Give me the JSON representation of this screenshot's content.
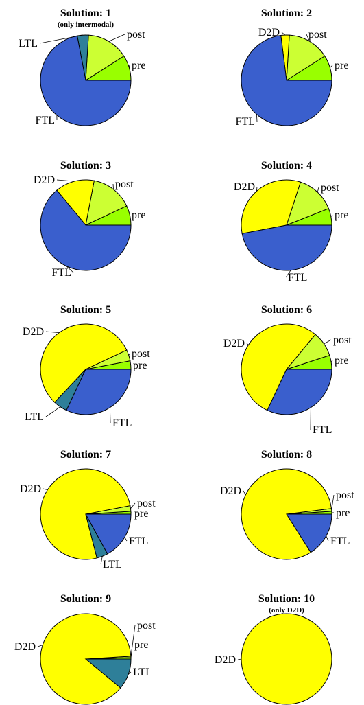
{
  "colors": {
    "pre": "#99ff00",
    "post": "#ccff33",
    "D2D": "#ffff00",
    "LTL": "#2e7f99",
    "FTL": "#3a5fcd"
  },
  "chart_data": [
    {
      "type": "pie",
      "title": "Solution: 1",
      "subtitle": "(only intermodal)",
      "slices": [
        {
          "name": "pre",
          "value": 9,
          "label": "pre"
        },
        {
          "name": "post",
          "value": 15,
          "label": "post"
        },
        {
          "name": "LTL",
          "value": 4,
          "label": "LTL"
        },
        {
          "name": "FTL",
          "value": 72,
          "label": "FTL"
        }
      ]
    },
    {
      "type": "pie",
      "title": "Solution: 2",
      "slices": [
        {
          "name": "pre",
          "value": 9,
          "label": "pre"
        },
        {
          "name": "post",
          "value": 15,
          "label": "post"
        },
        {
          "name": "D2D",
          "value": 3,
          "label": "D2D"
        },
        {
          "name": "FTL",
          "value": 73,
          "label": "FTL"
        }
      ]
    },
    {
      "type": "pie",
      "title": "Solution: 3",
      "slices": [
        {
          "name": "pre",
          "value": 7,
          "label": "pre"
        },
        {
          "name": "post",
          "value": 15,
          "label": "post"
        },
        {
          "name": "D2D",
          "value": 14,
          "label": "D2D"
        },
        {
          "name": "FTL",
          "value": 64,
          "label": "FTL"
        }
      ]
    },
    {
      "type": "pie",
      "title": "Solution: 4",
      "slices": [
        {
          "name": "pre",
          "value": 6,
          "label": "pre"
        },
        {
          "name": "post",
          "value": 14,
          "label": "post"
        },
        {
          "name": "D2D",
          "value": 33,
          "label": "D2D"
        },
        {
          "name": "FTL",
          "value": 47,
          "label": "FTL"
        }
      ]
    },
    {
      "type": "pie",
      "title": "Solution: 5",
      "slices": [
        {
          "name": "pre",
          "value": 3,
          "label": "pre"
        },
        {
          "name": "post",
          "value": 4,
          "label": "post"
        },
        {
          "name": "D2D",
          "value": 56,
          "label": "D2D"
        },
        {
          "name": "LTL",
          "value": 5,
          "label": "LTL"
        },
        {
          "name": "FTL",
          "value": 32,
          "label": "FTL"
        }
      ]
    },
    {
      "type": "pie",
      "title": "Solution: 6",
      "slices": [
        {
          "name": "pre",
          "value": 5,
          "label": "pre"
        },
        {
          "name": "post",
          "value": 9,
          "label": "post"
        },
        {
          "name": "D2D",
          "value": 54,
          "label": "D2D"
        },
        {
          "name": "FTL",
          "value": 32,
          "label": "FTL"
        }
      ]
    },
    {
      "type": "pie",
      "title": "Solution: 7",
      "slices": [
        {
          "name": "pre",
          "value": 1,
          "label": "pre"
        },
        {
          "name": "post",
          "value": 2,
          "label": "post"
        },
        {
          "name": "D2D",
          "value": 76,
          "label": "D2D"
        },
        {
          "name": "LTL",
          "value": 4,
          "label": "LTL"
        },
        {
          "name": "FTL",
          "value": 17,
          "label": "FTL"
        }
      ]
    },
    {
      "type": "pie",
      "title": "Solution: 8",
      "slices": [
        {
          "name": "pre",
          "value": 1,
          "label": "pre"
        },
        {
          "name": "post",
          "value": 1,
          "label": "post"
        },
        {
          "name": "D2D",
          "value": 82,
          "label": "D2D"
        },
        {
          "name": "FTL",
          "value": 16,
          "label": "FTL"
        }
      ]
    },
    {
      "type": "pie",
      "title": "Solution: 9",
      "slices": [
        {
          "name": "pre",
          "value": 0.5,
          "label": "pre"
        },
        {
          "name": "post",
          "value": 0.5,
          "label": "post"
        },
        {
          "name": "D2D",
          "value": 88,
          "label": "D2D"
        },
        {
          "name": "LTL",
          "value": 11,
          "label": "LTL"
        }
      ]
    },
    {
      "type": "pie",
      "title": "Solution: 10",
      "subtitle": "(only D2D)",
      "slices": [
        {
          "name": "D2D",
          "value": 100,
          "label": "D2D"
        }
      ]
    }
  ]
}
